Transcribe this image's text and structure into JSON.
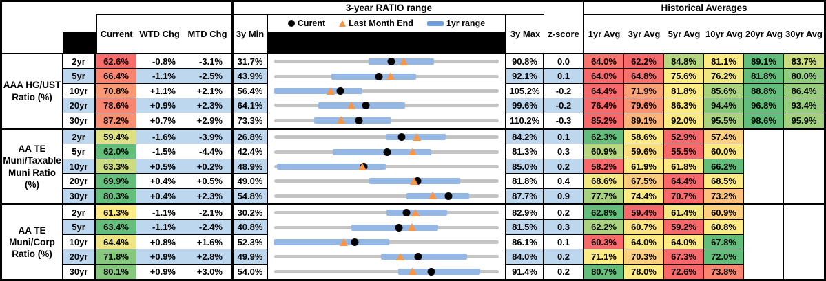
{
  "header": {
    "range_group_title": "3-year RATIO range",
    "historical_group_title": "Historical Averages",
    "col_current": "Current",
    "col_wtd": "WTD Chg",
    "col_mtd": "MTD Chg",
    "col_min": "3y Min",
    "col_max": "3y Max",
    "col_z": "z-score",
    "avg_cols": [
      "1yr Avg",
      "3yr Avg",
      "5yr Avg",
      "10yr Avg",
      "20yr Avg",
      "30yr Avg"
    ],
    "legend_current": "Curent",
    "legend_last_month": "Last Month End",
    "legend_range": "1yr range"
  },
  "colors": {
    "scale_red": "#F8696B",
    "scale_yellow": "#FFEB84",
    "scale_green": "#63BE7B",
    "row_stripe": "#BDD7EE",
    "range_bar_blue": "#95B7E3",
    "range_track_gray": "#C3C3C3",
    "marker_orange": "#F79646",
    "header_block_black": "#000000"
  },
  "chart_data": {
    "type": "table",
    "description": "Muni ratio dashboard: per-row 3y min..max range chart with 1yr range bar (blue), current (black dot), last month end (orange triangle), plus conditionally formatted current and historical average cells",
    "column_headers": [
      "Current",
      "WTD Chg",
      "MTD Chg",
      "3y Min",
      "3y Max",
      "z-score",
      "1yr Avg",
      "3yr Avg",
      "5yr Avg",
      "10yr Avg",
      "20yr Avg",
      "30yr Avg"
    ],
    "sections": [
      {
        "label_lines": [
          "AAA HG/UST",
          "Ratio (%)"
        ],
        "rows": [
          {
            "tenor": "2yr",
            "current": 62.6,
            "wtd_chg": "-0.8%",
            "mtd_chg": "-3.1%",
            "min_3y": 31.7,
            "max_3y": 90.8,
            "z_score": "0.0",
            "last_month_end": 65.7,
            "range_1yr": [
              56.5,
              73.7
            ],
            "averages": [
              64.0,
              62.2,
              84.8,
              81.1,
              89.1,
              83.7
            ]
          },
          {
            "tenor": "5yr",
            "current": 66.4,
            "wtd_chg": "-1.1%",
            "mtd_chg": "-2.5%",
            "min_3y": 43.9,
            "max_3y": 92.1,
            "z_score": "0.1",
            "last_month_end": 68.9,
            "range_1yr": [
              56.2,
              74.4
            ],
            "averages": [
              64.0,
              64.8,
              75.6,
              76.2,
              81.8,
              80.0
            ]
          },
          {
            "tenor": "10yr",
            "current": 70.8,
            "wtd_chg": "+1.1%",
            "mtd_chg": "+2.1%",
            "min_3y": 56.4,
            "max_3y": 105.2,
            "z_score": "-0.2",
            "last_month_end": 68.7,
            "range_1yr": [
              56.4,
              75.6
            ],
            "averages": [
              64.4,
              71.9,
              81.8,
              85.6,
              88.8,
              86.4
            ]
          },
          {
            "tenor": "20yr",
            "current": 78.6,
            "wtd_chg": "+0.9%",
            "mtd_chg": "+2.3%",
            "min_3y": 64.1,
            "max_3y": 99.6,
            "z_score": "-0.2",
            "last_month_end": 76.3,
            "range_1yr": [
              71.1,
              84.8
            ],
            "averages": [
              76.4,
              79.6,
              86.3,
              94.4,
              96.8,
              93.4
            ]
          },
          {
            "tenor": "30yr",
            "current": 87.2,
            "wtd_chg": "+0.7%",
            "mtd_chg": "+2.9%",
            "min_3y": 73.3,
            "max_3y": 110.2,
            "z_score": "-0.3",
            "last_month_end": 84.3,
            "range_1yr": [
              79.9,
              92.6
            ],
            "averages": [
              85.2,
              89.1,
              92.0,
              95.5,
              98.6,
              95.9
            ]
          }
        ]
      },
      {
        "label_lines": [
          "AA TE",
          "Muni/Taxable",
          "Muni Ratio",
          "(%)"
        ],
        "rows": [
          {
            "tenor": "2yr",
            "current": 59.4,
            "wtd_chg": "-1.6%",
            "mtd_chg": "-3.9%",
            "min_3y": 26.8,
            "max_3y": 84.2,
            "z_score": "0.1",
            "last_month_end": 63.3,
            "range_1yr": [
              55.3,
              70.7
            ],
            "averages": [
              62.3,
              58.6,
              52.9,
              57.4,
              null,
              null
            ]
          },
          {
            "tenor": "5yr",
            "current": 62.0,
            "wtd_chg": "-1.5%",
            "mtd_chg": "-4.4%",
            "min_3y": 42.4,
            "max_3y": 81.3,
            "z_score": "0.3",
            "last_month_end": 66.4,
            "range_1yr": [
              52.5,
              69.6
            ],
            "averages": [
              60.9,
              59.6,
              55.5,
              60.0,
              null,
              null
            ]
          },
          {
            "tenor": "10yr",
            "current": 63.3,
            "wtd_chg": "+0.5%",
            "mtd_chg": "+0.2%",
            "min_3y": 48.9,
            "max_3y": 85.0,
            "z_score": "0.2",
            "last_month_end": 63.1,
            "range_1yr": [
              49.3,
              66.8
            ],
            "averages": [
              58.2,
              61.9,
              61.8,
              66.2,
              null,
              null
            ]
          },
          {
            "tenor": "20yr",
            "current": 69.9,
            "wtd_chg": "+0.4%",
            "mtd_chg": "+0.5%",
            "min_3y": 49.0,
            "max_3y": 81.8,
            "z_score": "0.4",
            "last_month_end": 69.4,
            "range_1yr": [
              62.9,
              76.2
            ],
            "averages": [
              68.6,
              67.5,
              64.4,
              68.5,
              null,
              null
            ]
          },
          {
            "tenor": "30yr",
            "current": 80.3,
            "wtd_chg": "+0.4%",
            "mtd_chg": "+2.3%",
            "min_3y": 54.8,
            "max_3y": 87.7,
            "z_score": "0.9",
            "last_month_end": 78.0,
            "range_1yr": [
              74.2,
              83.4
            ],
            "averages": [
              77.7,
              74.4,
              70.7,
              73.2,
              null,
              null
            ]
          }
        ]
      },
      {
        "label_lines": [
          "AA TE",
          "Muni/Corp",
          "Ratio (%)"
        ],
        "rows": [
          {
            "tenor": "2yr",
            "current": 61.3,
            "wtd_chg": "-1.1%",
            "mtd_chg": "-2.1%",
            "min_3y": 30.2,
            "max_3y": 82.9,
            "z_score": "0.2",
            "last_month_end": 63.4,
            "range_1yr": [
              56.5,
              70.8
            ],
            "averages": [
              62.8,
              59.4,
              61.4,
              60.9,
              null,
              null
            ]
          },
          {
            "tenor": "5yr",
            "current": 63.4,
            "wtd_chg": "-1.1%",
            "mtd_chg": "-2.4%",
            "min_3y": 40.8,
            "max_3y": 81.5,
            "z_score": "0.3",
            "last_month_end": 65.8,
            "range_1yr": [
              54.8,
              70.5
            ],
            "averages": [
              62.2,
              60.7,
              59.2,
              60.8,
              null,
              null
            ]
          },
          {
            "tenor": "10yr",
            "current": 64.4,
            "wtd_chg": "+0.8%",
            "mtd_chg": "+1.6%",
            "min_3y": 52.3,
            "max_3y": 86.1,
            "z_score": "0.1",
            "last_month_end": 62.8,
            "range_1yr": [
              52.3,
              69.6
            ],
            "averages": [
              60.3,
              64.0,
              64.0,
              67.8,
              null,
              null
            ]
          },
          {
            "tenor": "20yr",
            "current": 71.8,
            "wtd_chg": "+0.9%",
            "mtd_chg": "+2.8%",
            "min_3y": 49.9,
            "max_3y": 84.0,
            "z_score": "0.2",
            "last_month_end": 69.0,
            "range_1yr": [
              66.1,
              79.2
            ],
            "averages": [
              71.1,
              70.3,
              67.3,
              72.0,
              null,
              null
            ]
          },
          {
            "tenor": "30yr",
            "current": 80.1,
            "wtd_chg": "+0.9%",
            "mtd_chg": "+3.0%",
            "min_3y": 54.0,
            "max_3y": 91.4,
            "z_score": "0.2",
            "last_month_end": 77.1,
            "range_1yr": [
              74.6,
              88.3
            ],
            "averages": [
              80.7,
              78.0,
              72.6,
              73.8,
              null,
              null
            ]
          }
        ]
      }
    ]
  }
}
